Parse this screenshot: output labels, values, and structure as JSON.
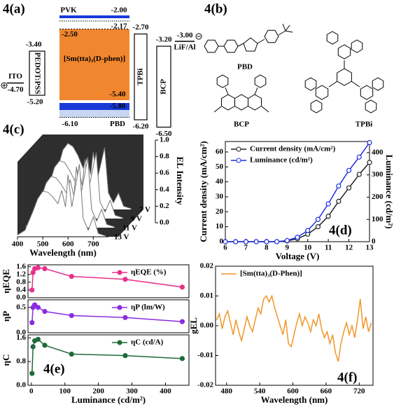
{
  "energy_diagram": {
    "label": "4(a)",
    "layers": [
      {
        "name": "ITO",
        "levels": [
          {
            "value": -4.7,
            "label": "-4.70"
          }
        ]
      },
      {
        "name": "PEDOT:PSS",
        "levels": [
          {
            "value": -3.4,
            "label": "-3.40"
          },
          {
            "value": -5.2,
            "label": "-5.20"
          }
        ]
      },
      {
        "name": "PVK",
        "levels": [
          {
            "value": -2.0,
            "label": "-2.00"
          },
          {
            "value": -5.8,
            "label": "-5.80"
          }
        ]
      },
      {
        "name": "[Sm(tta)₃(D-phen)]",
        "levels": [
          {
            "value": -2.5,
            "label": "-2.50"
          },
          {
            "value": -5.4,
            "label": "-5.40"
          }
        ]
      },
      {
        "name": "PBD",
        "levels": [
          {
            "value": -2.17,
            "label": "-2.17"
          },
          {
            "value": -6.1,
            "label": "-6.10"
          }
        ]
      },
      {
        "name": "TPBi",
        "levels": [
          {
            "value": -2.7,
            "label": "-2.70"
          },
          {
            "value": -6.2,
            "label": "-6.20"
          }
        ]
      },
      {
        "name": "BCP",
        "levels": [
          {
            "value": -3.2,
            "label": "-3.20"
          },
          {
            "value": -6.5,
            "label": "-6.50"
          }
        ]
      },
      {
        "name": "LiF/Al",
        "levels": [
          {
            "value": -3.0,
            "label": "-3.00"
          }
        ]
      }
    ]
  },
  "structures": {
    "label": "4(b)",
    "names": [
      "PBD",
      "BCP",
      "TPBi"
    ]
  },
  "chart_data": [
    {
      "type": "waterfall",
      "annotation": "4(c)",
      "x_label": "Wavelength (nm)",
      "z_label": "EL Intensity",
      "x": [
        400,
        430,
        460,
        480,
        500,
        520,
        540,
        560,
        575,
        590,
        600,
        615,
        630,
        645,
        660,
        680,
        700,
        720,
        750
      ],
      "xlim": [
        400,
        760
      ],
      "xticks": [
        400,
        500,
        600,
        700
      ],
      "zlim": [
        0,
        1
      ],
      "zticks": [
        {
          "value": 0,
          "label": "0.0"
        },
        0.2,
        0.4,
        0.6,
        0.8,
        {
          "value": 1,
          "label": "1.0"
        }
      ],
      "series": [
        {
          "name": "7 V",
          "values": [
            0.02,
            0.15,
            0.5,
            0.72,
            0.8,
            0.76,
            0.65,
            0.5,
            0.62,
            0.42,
            0.7,
            0.35,
            0.55,
            0.75,
            0.2,
            0.08,
            0.2,
            0.04,
            0.01
          ]
        },
        {
          "name": "9 V",
          "values": [
            0.02,
            0.12,
            0.42,
            0.62,
            0.7,
            0.68,
            0.58,
            0.46,
            0.6,
            0.4,
            0.72,
            0.35,
            0.58,
            0.8,
            0.2,
            0.08,
            0.22,
            0.04,
            0.01
          ]
        },
        {
          "name": "11 V",
          "values": [
            0.02,
            0.1,
            0.36,
            0.54,
            0.62,
            0.6,
            0.52,
            0.42,
            0.58,
            0.38,
            0.74,
            0.36,
            0.6,
            0.85,
            0.22,
            0.08,
            0.22,
            0.04,
            0.01
          ]
        },
        {
          "name": "13 V",
          "values": [
            0.02,
            0.08,
            0.3,
            0.46,
            0.55,
            0.54,
            0.48,
            0.4,
            0.56,
            0.36,
            0.75,
            0.36,
            0.62,
            0.88,
            0.22,
            0.08,
            0.24,
            0.04,
            0.01
          ]
        }
      ]
    },
    {
      "type": "line",
      "annotation": "4(d)",
      "x_label": "Voltage (V)",
      "y_label": "Current density (mA/cm²)",
      "y2_label": "Luminance (cd/m²)",
      "x": [
        6,
        6.5,
        7,
        7.5,
        8,
        8.5,
        9,
        9.5,
        10,
        10.5,
        11,
        11.5,
        12,
        12.5,
        13
      ],
      "xlim": [
        6,
        13
      ],
      "xticks": [
        6,
        7,
        8,
        9,
        10,
        11,
        12,
        13
      ],
      "ylim": [
        0,
        67
      ],
      "yticks": [
        0,
        10,
        20,
        30,
        40,
        50,
        60
      ],
      "y2lim": [
        0,
        450
      ],
      "y2ticks": [
        0,
        100,
        200,
        300,
        400
      ],
      "legend": "upper left",
      "marker": "open-circle",
      "series": [
        {
          "name": "Current density (mA/cm²)",
          "color": "#222222",
          "values": [
            0,
            0,
            0,
            0,
            0,
            0,
            0.5,
            2,
            5,
            10,
            17,
            27,
            36,
            45,
            53
          ]
        },
        {
          "name": "Luminance (cd/m²)",
          "color": "#1f2fe0",
          "axis": "y2",
          "values": [
            0,
            0,
            0,
            0,
            0,
            0,
            5,
            20,
            50,
            100,
            170,
            250,
            320,
            380,
            445
          ]
        }
      ]
    },
    {
      "type": "line",
      "y_label": "ηEQE",
      "x": [
        2,
        5,
        10,
        20,
        40,
        120,
        280,
        450
      ],
      "xlim": [
        -10,
        470
      ],
      "ylim": [
        0,
        1.7
      ],
      "yticks": [
        {
          "value": 0,
          "label": "0.0"
        },
        0.4,
        0.8,
        1.2,
        1.6
      ],
      "legend": "upper right",
      "marker": "filled-circle",
      "series": [
        {
          "name": "ηEQE (%)",
          "color": "#e8308a",
          "values": [
            0.4,
            1.3,
            1.5,
            1.55,
            1.5,
            1.1,
            0.95,
            0.55
          ]
        }
      ]
    },
    {
      "type": "line",
      "y_label": "ηP",
      "x": [
        2,
        5,
        10,
        20,
        40,
        120,
        280,
        450
      ],
      "xlim": [
        -10,
        470
      ],
      "ylim": [
        0,
        0.65
      ],
      "yticks": [
        {
          "value": 0,
          "label": "0.0"
        },
        0.5
      ],
      "legend": "upper right",
      "marker": "filled-circle",
      "series": [
        {
          "name": "ηP (lm/W)",
          "color": "#8a2be2",
          "values": [
            0.2,
            0.5,
            0.55,
            0.5,
            0.42,
            0.34,
            0.3,
            0.22
          ]
        }
      ]
    },
    {
      "type": "line",
      "annotation": "4(e)",
      "y_label": "ηC",
      "x_label": "Luminance (cd/m²)",
      "x": [
        2,
        5,
        10,
        20,
        40,
        120,
        280,
        450
      ],
      "xlim": [
        -10,
        470
      ],
      "xticks": [
        0,
        100,
        200,
        300,
        400
      ],
      "ylim": [
        0,
        1.7
      ],
      "yticks": [
        {
          "value": 0,
          "label": "0.0"
        },
        0.8,
        1.6
      ],
      "legend": "upper right",
      "marker": "filled-circle",
      "series": [
        {
          "name": "ηC (cd/A)",
          "color": "#1f6b3a",
          "values": [
            0.4,
            1.3,
            1.5,
            1.55,
            1.35,
            1.05,
            1.0,
            0.9
          ]
        }
      ]
    },
    {
      "type": "line",
      "annotation": "4(f)",
      "x_label": "Wavelength (nm)",
      "y_label": "gEL",
      "x": [
        462,
        467,
        472,
        477,
        482,
        487,
        492,
        497,
        502,
        507,
        512,
        517,
        522,
        527,
        532,
        537,
        542,
        547,
        552,
        557,
        562,
        567,
        572,
        577,
        582,
        587,
        592,
        597,
        602,
        607,
        612,
        617,
        622,
        627,
        632,
        637,
        642,
        647,
        652,
        657,
        662,
        667,
        672,
        677,
        682,
        687,
        692,
        697,
        702,
        707,
        712,
        717,
        722,
        727,
        732,
        737,
        742
      ],
      "xlim": [
        460,
        745
      ],
      "xticks": [
        480,
        540,
        600,
        660,
        720
      ],
      "ylim": [
        -0.02,
        0.02
      ],
      "yticks": [
        -0.02,
        -0.01,
        {
          "value": 0,
          "label": "0.00"
        },
        0.01,
        0.02
      ],
      "legend": "upper left",
      "marker": "none",
      "series": [
        {
          "name": "[Sm(tta)₃(D-Phen)]",
          "color": "#f0962a",
          "values": [
            0.002,
            0.004,
            -0.001,
            0.003,
            0.005,
            0.001,
            -0.003,
            0.002,
            -0.002,
            -0.005,
            -0.001,
            0.003,
            0,
            -0.002,
            0.002,
            0.006,
            0.004,
            0.009,
            0.01,
            0.008,
            0.01,
            0.006,
            0.003,
            0,
            -0.003,
            0.002,
            -0.006,
            -0.007,
            -0.003,
            0.001,
            0.004,
            0,
            0.003,
            0.001,
            -0.002,
            0.002,
            0,
            0.004,
            -0.001,
            -0.004,
            -0.002,
            -0.006,
            -0.003,
            -0.009,
            -0.012,
            -0.006,
            -0.002,
            0.001,
            -0.003,
            0,
            -0.004,
            0.002,
            0.009,
            -0.001,
            0.003,
            -0.002,
            0.001
          ]
        }
      ]
    }
  ]
}
